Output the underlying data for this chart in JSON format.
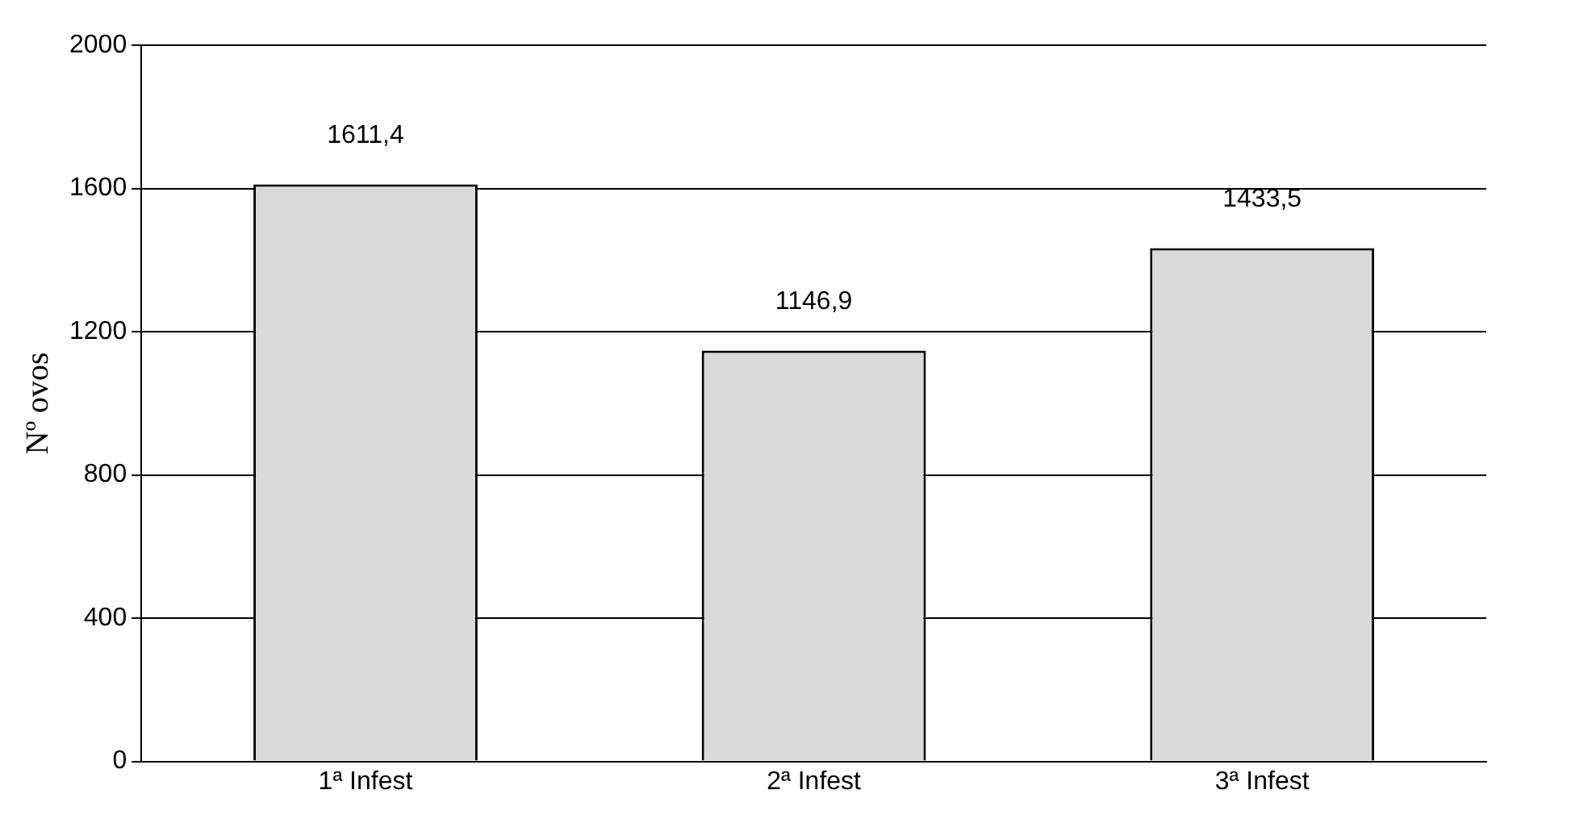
{
  "chart_data": {
    "type": "bar",
    "ylabel": "Nº ovos",
    "categories": [
      "1ª Infest",
      "2ª Infest",
      "3ª Infest"
    ],
    "values": [
      1611.4,
      1146.9,
      1433.5
    ],
    "value_labels": [
      "1611,4",
      "1146,9",
      "1433,5"
    ],
    "color": "#d9d9d9",
    "ylim": [
      0,
      2000
    ],
    "yticks": [
      0,
      400,
      800,
      1200,
      1600,
      2000
    ],
    "grid": "y"
  }
}
